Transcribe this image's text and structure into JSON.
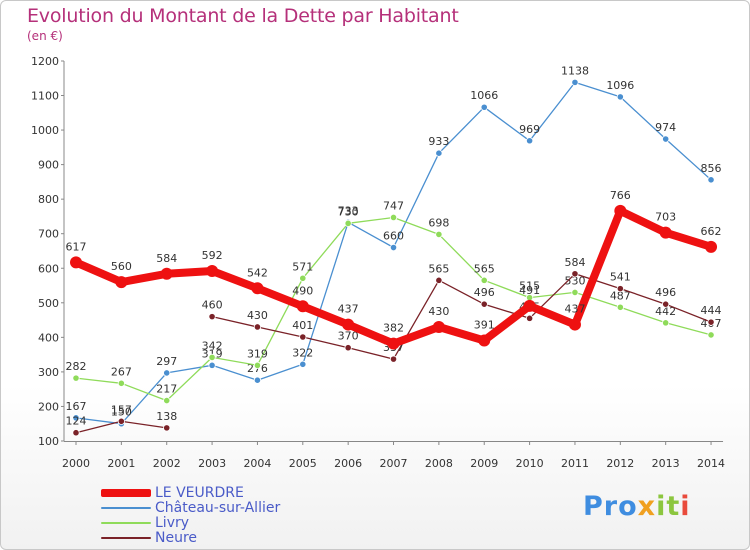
{
  "title": "Evolution du Montant de la Dette par Habitant",
  "unit": "(en €)",
  "logo": {
    "p1": "Pro",
    "p2": "x",
    "p3": "it",
    "p4": "i"
  },
  "chart_data": {
    "type": "line",
    "x": [
      2000,
      2001,
      2002,
      2003,
      2004,
      2005,
      2006,
      2007,
      2008,
      2009,
      2010,
      2011,
      2012,
      2013,
      2014
    ],
    "ylim": [
      100,
      1200
    ],
    "yticks": [
      100,
      200,
      300,
      400,
      500,
      600,
      700,
      800,
      900,
      1000,
      1100,
      1200
    ],
    "grid": false,
    "legend_position": "bottom-left",
    "series": [
      {
        "name": "Château-sur-Allier",
        "color": "#4a8fd0",
        "values": [
          167,
          150,
          297,
          319,
          276,
          322,
          733,
          660,
          933,
          1066,
          969,
          1138,
          1096,
          974,
          856
        ]
      },
      {
        "name": "Livry",
        "color": "#8fdb5a",
        "values": [
          282,
          267,
          217,
          342,
          319,
          571,
          730,
          747,
          698,
          565,
          515,
          530,
          487,
          442,
          407
        ]
      },
      {
        "name": "Neure",
        "color": "#7a2228",
        "values": [
          124,
          157,
          138,
          460,
          430,
          401,
          370,
          337,
          565,
          496,
          455,
          584,
          541,
          496,
          444
        ]
      },
      {
        "name": "LE VEURDRE",
        "color": "#ee1111",
        "values": [
          617,
          560,
          584,
          592,
          542,
          490,
          437,
          382,
          430,
          391,
          491,
          437,
          766,
          703,
          662
        ]
      }
    ]
  }
}
